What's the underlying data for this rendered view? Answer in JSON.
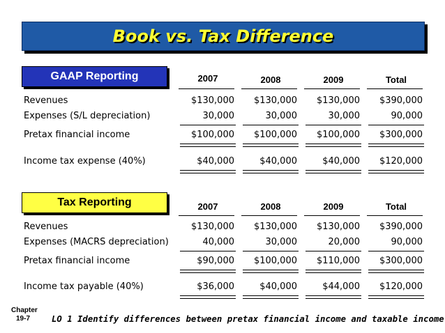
{
  "title": "Book vs. Tax Difference",
  "gaap": {
    "label": "GAAP Reporting",
    "headers": [
      "2007",
      "2008",
      "2009",
      "Total"
    ],
    "rows": [
      {
        "label": "Revenues",
        "values": [
          "$130,000",
          "$130,000",
          "$130,000",
          "$390,000"
        ]
      },
      {
        "label": "Expenses (S/L depreciation)",
        "values": [
          "30,000",
          "30,000",
          "30,000",
          "90,000"
        ]
      },
      {
        "label": "Pretax financial income",
        "values": [
          "$100,000",
          "$100,000",
          "$100,000",
          "$300,000"
        ]
      },
      {
        "label": "Income tax expense (40%)",
        "values": [
          "$40,000",
          "$40,000",
          "$40,000",
          "$120,000"
        ]
      }
    ]
  },
  "tax": {
    "label": "Tax Reporting",
    "headers": [
      "2007",
      "2008",
      "2009",
      "Total"
    ],
    "rows": [
      {
        "label": "Revenues",
        "values": [
          "$130,000",
          "$130,000",
          "$130,000",
          "$390,000"
        ]
      },
      {
        "label": "Expenses (MACRS depreciation)",
        "values": [
          "40,000",
          "30,000",
          "20,000",
          "90,000"
        ]
      },
      {
        "label": "Pretax financial income",
        "values": [
          "$90,000",
          "$100,000",
          "$110,000",
          "$300,000"
        ]
      },
      {
        "label": "Income tax payable (40%)",
        "values": [
          "$36,000",
          "$40,000",
          "$44,000",
          "$120,000"
        ]
      }
    ]
  },
  "footer": {
    "chapter_label": "Chapter",
    "chapter_number": "19-7",
    "objective": "LO 1 Identify differences between pretax financial income and taxable income."
  }
}
